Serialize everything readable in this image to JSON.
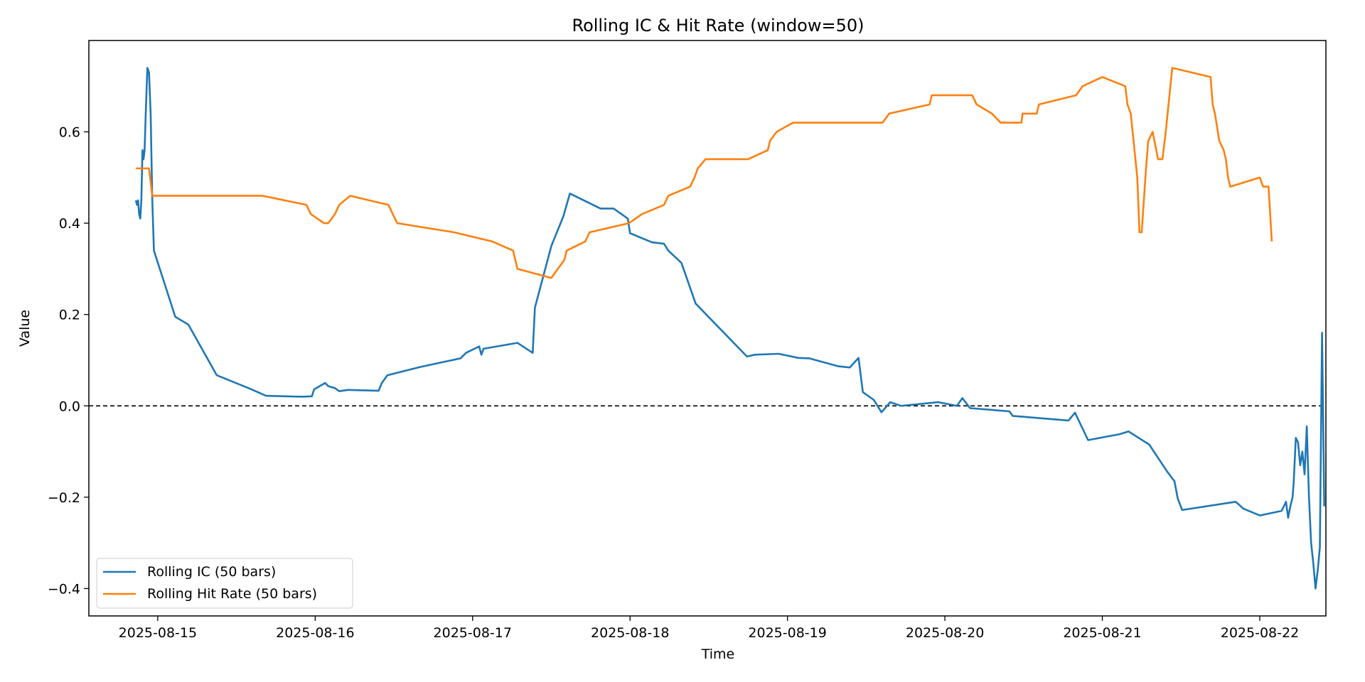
{
  "chart_data": {
    "type": "line",
    "title": "Rolling IC & Hit Rate (window=50)",
    "xlabel": "Time",
    "ylabel": "Value",
    "xlim": [
      "2025-08-14T13:30",
      "2025-08-22T10:05"
    ],
    "ylim": [
      -0.46,
      0.8
    ],
    "x_ticks": [
      "2025-08-15",
      "2025-08-16",
      "2025-08-17",
      "2025-08-18",
      "2025-08-19",
      "2025-08-20",
      "2025-08-21",
      "2025-08-22"
    ],
    "y_ticks": [
      -0.4,
      -0.2,
      0.0,
      0.2,
      0.4,
      0.6
    ],
    "y_tick_labels": [
      "−0.4",
      "−0.2",
      "0.0",
      "0.2",
      "0.4",
      "0.6"
    ],
    "reference_line": {
      "y": 0.0,
      "style": "dashed",
      "color": "#000000"
    },
    "grid": false,
    "legend_position": "lower-left",
    "series": [
      {
        "name": "Rolling IC (50 bars)",
        "color": "#1f77b4",
        "points": [
          [
            "2025-08-14T20:40",
            0.45
          ],
          [
            "2025-08-14T20:50",
            0.44
          ],
          [
            "2025-08-14T21:00",
            0.45
          ],
          [
            "2025-08-14T21:10",
            0.42
          ],
          [
            "2025-08-14T21:20",
            0.41
          ],
          [
            "2025-08-14T21:30",
            0.45
          ],
          [
            "2025-08-14T21:40",
            0.56
          ],
          [
            "2025-08-14T21:50",
            0.54
          ],
          [
            "2025-08-14T22:00",
            0.56
          ],
          [
            "2025-08-14T22:10",
            0.64
          ],
          [
            "2025-08-14T22:25",
            0.74
          ],
          [
            "2025-08-14T22:40",
            0.73
          ],
          [
            "2025-08-14T22:55",
            0.64
          ],
          [
            "2025-08-14T23:10",
            0.45
          ],
          [
            "2025-08-14T23:25",
            0.34
          ],
          [
            "2025-08-15T02:40",
            0.195
          ],
          [
            "2025-08-15T04:40",
            0.178
          ],
          [
            "2025-08-15T09:00",
            0.067
          ],
          [
            "2025-08-15T14:00",
            0.038
          ],
          [
            "2025-08-15T16:30",
            0.022
          ],
          [
            "2025-08-15T22:00",
            0.02
          ],
          [
            "2025-08-15T23:30",
            0.021
          ],
          [
            "2025-08-15T23:50",
            0.036
          ],
          [
            "2025-08-16T01:30",
            0.05
          ],
          [
            "2025-08-16T02:00",
            0.043
          ],
          [
            "2025-08-16T03:00",
            0.039
          ],
          [
            "2025-08-16T03:40",
            0.032
          ],
          [
            "2025-08-16T05:00",
            0.035
          ],
          [
            "2025-08-16T09:40",
            0.033
          ],
          [
            "2025-08-16T10:10",
            0.05
          ],
          [
            "2025-08-16T11:00",
            0.067
          ],
          [
            "2025-08-16T16:00",
            0.085
          ],
          [
            "2025-08-16T22:10",
            0.104
          ],
          [
            "2025-08-16T23:00",
            0.116
          ],
          [
            "2025-08-17T01:00",
            0.13
          ],
          [
            "2025-08-17T01:20",
            0.112
          ],
          [
            "2025-08-17T01:40",
            0.125
          ],
          [
            "2025-08-17T06:50",
            0.138
          ],
          [
            "2025-08-17T09:10",
            0.116
          ],
          [
            "2025-08-17T09:30",
            0.215
          ],
          [
            "2025-08-17T12:00",
            0.35
          ],
          [
            "2025-08-17T13:50",
            0.415
          ],
          [
            "2025-08-17T14:50",
            0.465
          ],
          [
            "2025-08-17T19:30",
            0.432
          ],
          [
            "2025-08-17T21:30",
            0.432
          ],
          [
            "2025-08-17T23:40",
            0.41
          ],
          [
            "2025-08-18T00:00",
            0.378
          ],
          [
            "2025-08-18T03:20",
            0.358
          ],
          [
            "2025-08-18T05:10",
            0.355
          ],
          [
            "2025-08-18T05:50",
            0.34
          ],
          [
            "2025-08-18T07:50",
            0.313
          ],
          [
            "2025-08-18T10:00",
            0.224
          ],
          [
            "2025-08-18T17:50",
            0.108
          ],
          [
            "2025-08-18T19:00",
            0.112
          ],
          [
            "2025-08-18T22:40",
            0.114
          ],
          [
            "2025-08-19T01:40",
            0.105
          ],
          [
            "2025-08-19T03:20",
            0.104
          ],
          [
            "2025-08-19T07:40",
            0.087
          ],
          [
            "2025-08-19T09:30",
            0.084
          ],
          [
            "2025-08-19T10:50",
            0.105
          ],
          [
            "2025-08-19T11:30",
            0.03
          ],
          [
            "2025-08-19T13:10",
            0.013
          ],
          [
            "2025-08-19T14:20",
            -0.014
          ],
          [
            "2025-08-19T15:40",
            0.008
          ],
          [
            "2025-08-19T17:20",
            0.0
          ],
          [
            "2025-08-19T23:00",
            0.008
          ],
          [
            "2025-08-20T01:50",
            0.0
          ],
          [
            "2025-08-20T02:40",
            0.017
          ],
          [
            "2025-08-20T03:50",
            -0.005
          ],
          [
            "2025-08-20T09:50",
            -0.012
          ],
          [
            "2025-08-20T10:20",
            -0.022
          ],
          [
            "2025-08-20T18:50",
            -0.032
          ],
          [
            "2025-08-20T19:50",
            -0.015
          ],
          [
            "2025-08-20T21:50",
            -0.075
          ],
          [
            "2025-08-21T02:40",
            -0.062
          ],
          [
            "2025-08-21T04:00",
            -0.056
          ],
          [
            "2025-08-21T07:10",
            -0.085
          ],
          [
            "2025-08-21T09:50",
            -0.143
          ],
          [
            "2025-08-21T11:00",
            -0.165
          ],
          [
            "2025-08-21T11:30",
            -0.203
          ],
          [
            "2025-08-21T12:10",
            -0.228
          ],
          [
            "2025-08-21T20:20",
            -0.21
          ],
          [
            "2025-08-21T21:30",
            -0.225
          ],
          [
            "2025-08-22T00:00",
            -0.24
          ],
          [
            "2025-08-22T03:20",
            -0.23
          ],
          [
            "2025-08-22T04:00",
            -0.21
          ],
          [
            "2025-08-22T04:20",
            -0.245
          ],
          [
            "2025-08-22T04:40",
            -0.22
          ],
          [
            "2025-08-22T05:00",
            -0.2
          ],
          [
            "2025-08-22T05:10",
            -0.17
          ],
          [
            "2025-08-22T05:30",
            -0.07
          ],
          [
            "2025-08-22T05:50",
            -0.08
          ],
          [
            "2025-08-22T06:10",
            -0.13
          ],
          [
            "2025-08-22T06:30",
            -0.1
          ],
          [
            "2025-08-22T06:50",
            -0.15
          ],
          [
            "2025-08-22T07:10",
            -0.045
          ],
          [
            "2025-08-22T07:30",
            -0.2
          ],
          [
            "2025-08-22T07:50",
            -0.3
          ],
          [
            "2025-08-22T08:10",
            -0.345
          ],
          [
            "2025-08-22T08:30",
            -0.4
          ],
          [
            "2025-08-22T08:50",
            -0.36
          ],
          [
            "2025-08-22T09:10",
            -0.31
          ],
          [
            "2025-08-22T09:30",
            0.16
          ],
          [
            "2025-08-22T09:50",
            -0.22
          ]
        ]
      },
      {
        "name": "Rolling Hit Rate (50 bars)",
        "color": "#ff7f0e",
        "points": [
          [
            "2025-08-14T20:40",
            0.52
          ],
          [
            "2025-08-14T22:40",
            0.52
          ],
          [
            "2025-08-14T23:10",
            0.46
          ],
          [
            "2025-08-15T16:00",
            0.46
          ],
          [
            "2025-08-15T22:40",
            0.44
          ],
          [
            "2025-08-15T23:20",
            0.42
          ],
          [
            "2025-08-16T01:20",
            0.4
          ],
          [
            "2025-08-16T02:00",
            0.4
          ],
          [
            "2025-08-16T03:00",
            0.42
          ],
          [
            "2025-08-16T03:40",
            0.44
          ],
          [
            "2025-08-16T05:20",
            0.46
          ],
          [
            "2025-08-16T11:10",
            0.44
          ],
          [
            "2025-08-16T11:50",
            0.42
          ],
          [
            "2025-08-16T12:30",
            0.4
          ],
          [
            "2025-08-16T21:10",
            0.38
          ],
          [
            "2025-08-17T03:00",
            0.36
          ],
          [
            "2025-08-17T06:10",
            0.34
          ],
          [
            "2025-08-17T06:50",
            0.3
          ],
          [
            "2025-08-17T12:00",
            0.28
          ],
          [
            "2025-08-17T14:00",
            0.32
          ],
          [
            "2025-08-17T14:20",
            0.34
          ],
          [
            "2025-08-17T17:10",
            0.36
          ],
          [
            "2025-08-17T17:50",
            0.38
          ],
          [
            "2025-08-17T23:50",
            0.4
          ],
          [
            "2025-08-18T01:50",
            0.42
          ],
          [
            "2025-08-18T05:10",
            0.44
          ],
          [
            "2025-08-18T05:50",
            0.46
          ],
          [
            "2025-08-18T09:10",
            0.48
          ],
          [
            "2025-08-18T09:50",
            0.5
          ],
          [
            "2025-08-18T10:20",
            0.52
          ],
          [
            "2025-08-18T11:30",
            0.54
          ],
          [
            "2025-08-18T18:00",
            0.54
          ],
          [
            "2025-08-18T21:00",
            0.56
          ],
          [
            "2025-08-18T21:20",
            0.58
          ],
          [
            "2025-08-18T22:20",
            0.6
          ],
          [
            "2025-08-19T00:50",
            0.62
          ],
          [
            "2025-08-19T14:30",
            0.62
          ],
          [
            "2025-08-19T15:30",
            0.64
          ],
          [
            "2025-08-19T21:40",
            0.66
          ],
          [
            "2025-08-19T22:00",
            0.68
          ],
          [
            "2025-08-20T04:10",
            0.68
          ],
          [
            "2025-08-20T04:50",
            0.66
          ],
          [
            "2025-08-20T07:10",
            0.64
          ],
          [
            "2025-08-20T08:30",
            0.62
          ],
          [
            "2025-08-20T11:40",
            0.62
          ],
          [
            "2025-08-20T11:50",
            0.64
          ],
          [
            "2025-08-20T14:00",
            0.64
          ],
          [
            "2025-08-20T14:20",
            0.66
          ],
          [
            "2025-08-20T20:00",
            0.68
          ],
          [
            "2025-08-20T21:00",
            0.7
          ],
          [
            "2025-08-21T00:00",
            0.72
          ],
          [
            "2025-08-21T03:30",
            0.7
          ],
          [
            "2025-08-21T03:50",
            0.66
          ],
          [
            "2025-08-21T04:20",
            0.64
          ],
          [
            "2025-08-21T05:20",
            0.5
          ],
          [
            "2025-08-21T05:40",
            0.38
          ],
          [
            "2025-08-21T06:00",
            0.38
          ],
          [
            "2025-08-21T06:40",
            0.52
          ],
          [
            "2025-08-21T07:00",
            0.58
          ],
          [
            "2025-08-21T07:40",
            0.6
          ],
          [
            "2025-08-21T08:30",
            0.54
          ],
          [
            "2025-08-21T09:10",
            0.54
          ],
          [
            "2025-08-21T09:40",
            0.6
          ],
          [
            "2025-08-21T10:40",
            0.74
          ],
          [
            "2025-08-21T16:30",
            0.72
          ],
          [
            "2025-08-21T16:50",
            0.66
          ],
          [
            "2025-08-21T17:10",
            0.64
          ],
          [
            "2025-08-21T17:50",
            0.58
          ],
          [
            "2025-08-21T18:30",
            0.56
          ],
          [
            "2025-08-21T18:50",
            0.54
          ],
          [
            "2025-08-21T19:10",
            0.5
          ],
          [
            "2025-08-21T19:30",
            0.48
          ],
          [
            "2025-08-22T00:00",
            0.5
          ],
          [
            "2025-08-22T00:30",
            0.48
          ],
          [
            "2025-08-22T01:20",
            0.48
          ],
          [
            "2025-08-22T01:50",
            0.36
          ]
        ]
      }
    ]
  }
}
